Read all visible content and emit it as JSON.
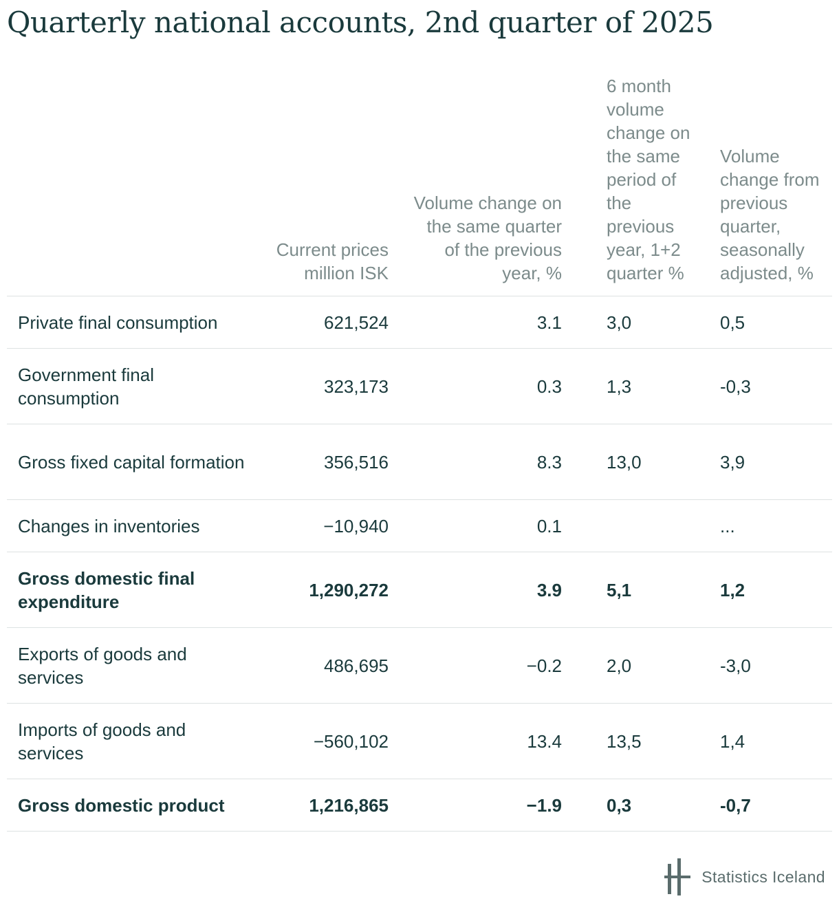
{
  "title": "Quarterly national accounts, 2nd quarter of 2025",
  "chart_data": {
    "type": "table",
    "columns": [
      "",
      "Current prices million ISK",
      "Volume change on the same quarter of the previous year, %",
      "6 month volume change on the same period of the previous year, 1+2 quarter %",
      "Volume change from previous quarter, seasonally adjusted, %"
    ],
    "rows": [
      {
        "label": "Private final consumption",
        "bold": false,
        "values": [
          "621,524",
          "3.1",
          "3,0",
          "0,5"
        ]
      },
      {
        "label": "Government final consumption",
        "bold": false,
        "values": [
          "323,173",
          "0.3",
          "1,3",
          "-0,3"
        ]
      },
      {
        "label": "Gross fixed capital formation",
        "bold": false,
        "values": [
          "356,516",
          "8.3",
          "13,0",
          "3,9"
        ]
      },
      {
        "label": "Changes in inventories",
        "bold": false,
        "values": [
          "−10,940",
          "0.1",
          "",
          "..."
        ]
      },
      {
        "label": "Gross domestic final expenditure",
        "bold": true,
        "values": [
          "1,290,272",
          "3.9",
          "5,1",
          "1,2"
        ]
      },
      {
        "label": "Exports of goods and services",
        "bold": false,
        "values": [
          "486,695",
          "−0.2",
          "2,0",
          "-3,0"
        ]
      },
      {
        "label": "Imports of goods and services",
        "bold": false,
        "values": [
          "−560,102",
          "13.4",
          "13,5",
          "1,4"
        ]
      },
      {
        "label": "Gross domestic product",
        "bold": true,
        "values": [
          "1,216,865",
          "−1.9",
          "0,3",
          "-0,7"
        ]
      }
    ]
  },
  "footer": {
    "logo_text": "Statistics Iceland",
    "logo_icon": "statistics-iceland-logo-icon"
  },
  "colors": {
    "text": "#1a3a3c",
    "header_text": "#7c8b8b",
    "rule": "#dde2e2",
    "logo": "#5a6c6c"
  }
}
